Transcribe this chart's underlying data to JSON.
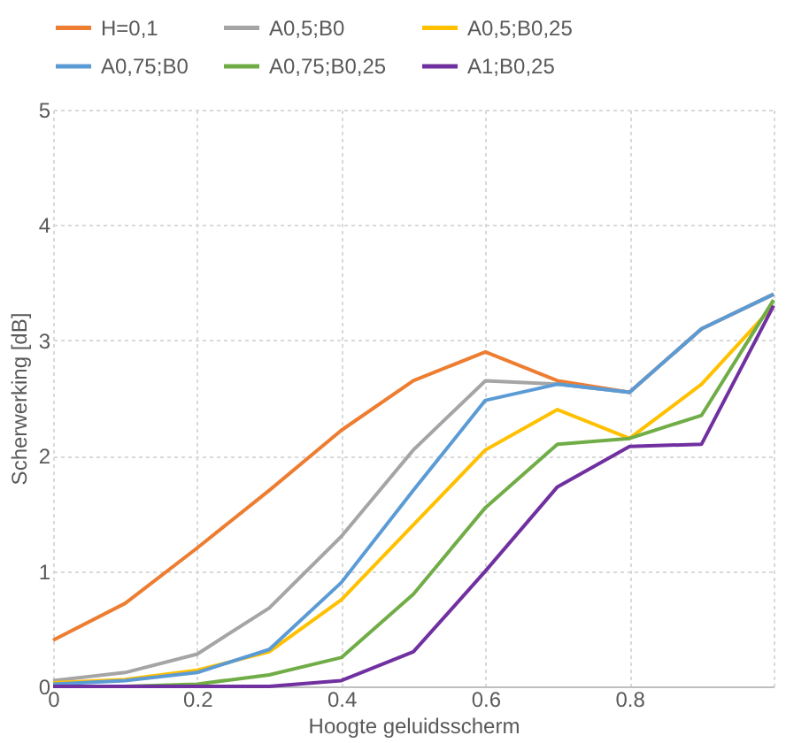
{
  "chart_data": {
    "type": "line",
    "xlabel": "Hoogte geluidsscherm",
    "ylabel": "Scherwerking [dB]",
    "x": [
      0,
      0.1,
      0.2,
      0.3,
      0.4,
      0.5,
      0.6,
      0.7,
      0.8,
      0.9,
      1
    ],
    "xlim": [
      0,
      1
    ],
    "xticks": [
      0,
      0.2,
      0.4,
      0.6,
      0.8,
      {
        "value": 1,
        "label": null
      }
    ],
    "ylim": [
      0,
      5
    ],
    "yticks": [
      0,
      1,
      2,
      3,
      4,
      5
    ],
    "grid": true,
    "legend": "top",
    "marker": "none",
    "line_style": "solid",
    "series": [
      {
        "name": "H=0,1",
        "color": "#ed7d31",
        "values": [
          0.4,
          0.72,
          1.2,
          1.7,
          2.22,
          2.65,
          2.9,
          2.65,
          2.55,
          3.1,
          3.4
        ]
      },
      {
        "name": "A0,5;B0",
        "color": "#a5a5a5",
        "values": [
          0.05,
          0.12,
          0.28,
          0.68,
          1.3,
          2.05,
          2.65,
          2.62,
          2.55,
          3.1,
          3.4
        ]
      },
      {
        "name": "A0,5;B0,25",
        "color": "#ffc000",
        "values": [
          0.03,
          0.06,
          0.14,
          0.3,
          0.75,
          1.4,
          2.05,
          2.4,
          2.15,
          2.62,
          3.3
        ]
      },
      {
        "name": "A0,75;B0",
        "color": "#5b9bd5",
        "values": [
          0.02,
          0.05,
          0.12,
          0.32,
          0.9,
          1.7,
          2.48,
          2.62,
          2.55,
          3.1,
          3.4
        ]
      },
      {
        "name": "A0,75;B0,25",
        "color": "#70ad47",
        "values": [
          0,
          0,
          0.02,
          0.1,
          0.25,
          0.8,
          1.55,
          2.1,
          2.15,
          2.35,
          3.35
        ]
      },
      {
        "name": "A1;B0,25",
        "color": "#7030a0",
        "values": [
          0,
          0,
          0,
          0,
          0.05,
          0.3,
          1.0,
          1.73,
          2.08,
          2.1,
          3.3
        ]
      }
    ]
  }
}
